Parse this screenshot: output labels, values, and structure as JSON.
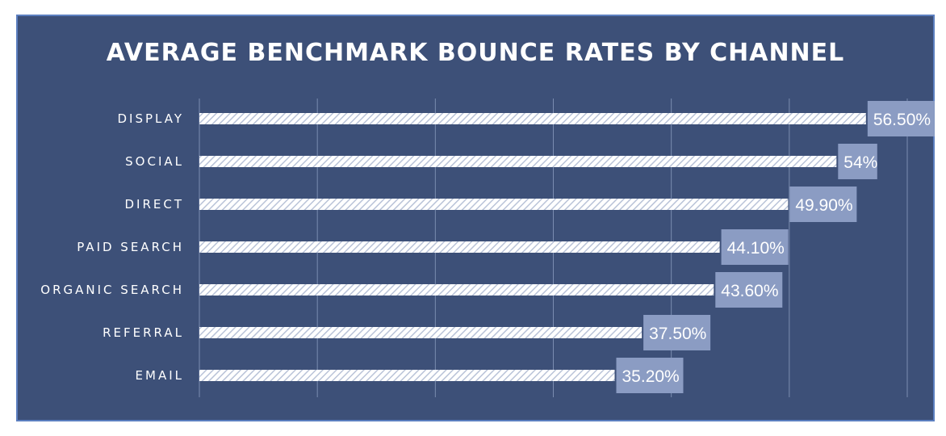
{
  "chart_data": {
    "type": "bar",
    "orientation": "horizontal",
    "title": "AVERAGE BENCHMARK BOUNCE RATES BY CHANNEL",
    "categories": [
      "DISPLAY",
      "SOCIAL",
      "DIRECT",
      "PAID SEARCH",
      "ORGANIC SEARCH",
      "REFERRAL",
      "EMAIL"
    ],
    "values": [
      56.5,
      54.0,
      49.9,
      44.1,
      43.6,
      37.5,
      35.2
    ],
    "data_labels": [
      "56.50%",
      "54%",
      "49.90%",
      "44.10%",
      "43.60%",
      "37.50%",
      "35.20%"
    ],
    "xlim": [
      0,
      60
    ],
    "grid": true,
    "legend": "none",
    "colors": {
      "background": "#3d5078",
      "border": "#5c7fc0",
      "bar_fill": "#ffffff",
      "bar_hatch": "#b9c3d8",
      "label_box": "#8b9cc3",
      "gridline": "#7a8cb0",
      "text": "#ffffff"
    }
  }
}
